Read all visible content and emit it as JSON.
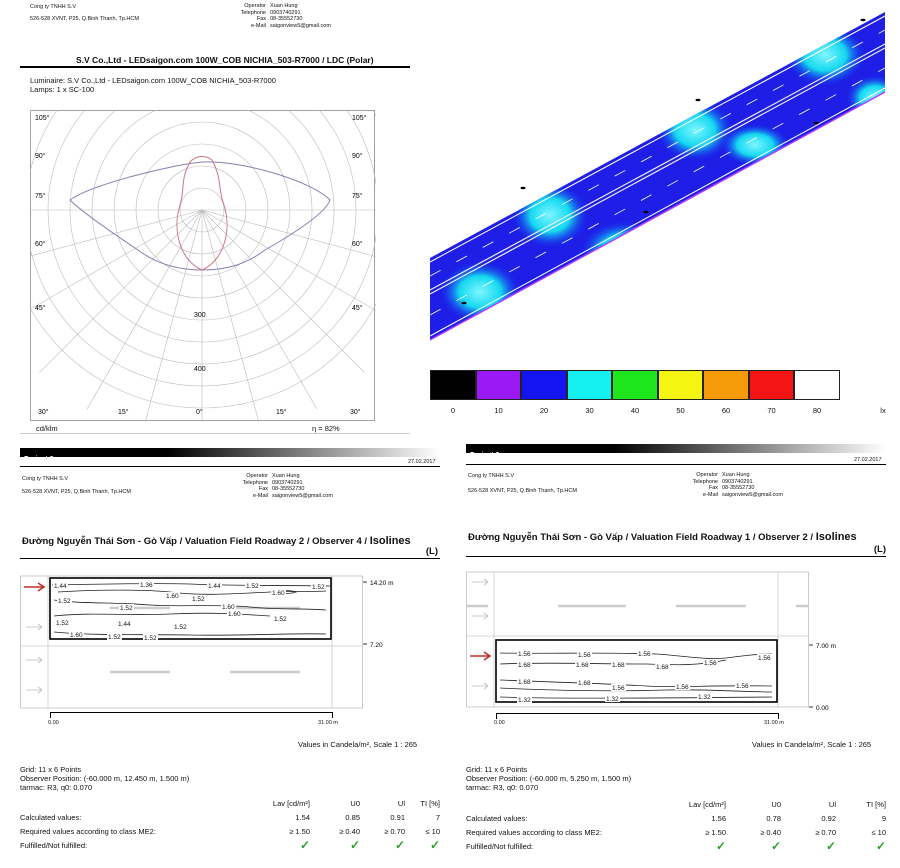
{
  "company": {
    "name": "Cong ty TNHH S.V",
    "address": "526-528 XVNT, P25, Q.Binh Thanh, Tp.HCM",
    "labels": {
      "operator": "Operator",
      "telephone": "Telephone",
      "fax": "Fax",
      "email": "e-Mail"
    },
    "operator": "Xuan Hung",
    "telephone": "0903740291",
    "fax": "08-35552730",
    "email": "saigonview5@gmail.com"
  },
  "ldc": {
    "title": "S.V Co.,Ltd - LEDsaigon.com 100W_COB NICHIA_503-R7000 / LDC (Polar)",
    "luminaire": "Luminaire: S.V Co.,Ltd - LEDsaigon.com 100W_COB NICHIA_503-R7000",
    "lamps": "Lamps: 1 x SC-100",
    "unit": "cd/klm",
    "eta": "η = 82%",
    "angles": {
      "a105": "105°",
      "a90": "90°",
      "a75": "75°",
      "a60": "60°",
      "a45": "45°",
      "a30": "30°",
      "a15": "15°",
      "a0": "0°"
    },
    "radial": {
      "r300": "300",
      "r400": "400"
    }
  },
  "legend": {
    "colors": [
      "#000000",
      "#9b19f5",
      "#1414f0",
      "#14f0f0",
      "#1ee61e",
      "#f5f514",
      "#f59b0a",
      "#f51414",
      "#ffffff"
    ],
    "values": [
      "0",
      "10",
      "20",
      "30",
      "40",
      "50",
      "60",
      "70",
      "80"
    ],
    "unit": "lx"
  },
  "left_panel": {
    "project": "Project 2",
    "date": "27.02.2017",
    "title": "Đường Nguyễn Thái Sơn - Gò Vấp / Valuation Field Roadway 2 / Observer 4 / ",
    "title_suffix": "Isolines",
    "title_l": "(L)",
    "y_top": "14.20 m",
    "y_mid": "7.20",
    "x_start": "0.00",
    "x_end": "31.00 m",
    "scale": "Values in Candela/m², Scale 1 : 265",
    "iso": [
      "1.44",
      "1.36",
      "1.44",
      "1.52",
      "1.52",
      "1.60",
      "1.52",
      "1.60",
      "1.52",
      "1.60",
      "1.52",
      "1.60",
      "1.52",
      "1.52",
      "1.44",
      "1.52",
      "1.60",
      "1.52",
      "1.52"
    ],
    "grid": "Grid: 11 x 6 Points",
    "observer": "Observer Position: (-60.000 m, 12.450 m, 1.500 m)",
    "tarmac": "tarmac: R3, q0: 0.070",
    "headers": [
      "Lav [cd/m²]",
      "U0",
      "Ul",
      "TI [%]"
    ],
    "rows": [
      {
        "label": "Calculated values:",
        "vals": [
          "1.54",
          "0.85",
          "0.91",
          "7"
        ]
      },
      {
        "label": "Required values according to class ME2:",
        "vals": [
          "≥ 1.50",
          "≥ 0.40",
          "≥ 0.70",
          "≤ 10"
        ]
      },
      {
        "label": "Fulfilled/Not fulfilled:",
        "vals": [
          "✓",
          "✓",
          "✓",
          "✓"
        ]
      }
    ]
  },
  "right_panel": {
    "project": "Project 2",
    "date": "27.02.2017",
    "title": "Đường Nguyễn Thái Sơn - Gò Vấp / Valuation Field Roadway 1 / Observer 2 / ",
    "title_suffix": "Isolines",
    "title_l": "(L)",
    "y_top": "7.00 m",
    "y_bottom": "0.00",
    "x_start": "0.00",
    "x_end": "31.00 m",
    "scale": "Values in Candela/m², Scale 1 : 265",
    "iso": [
      "1.56",
      "1.56",
      "1.56",
      "1.56",
      "1.56",
      "1.68",
      "1.68",
      "1.68",
      "1.68",
      "1.68",
      "1.68",
      "1.56",
      "1.56",
      "1.56",
      "1.32",
      "1.32",
      "1.32"
    ],
    "grid": "Grid: 11 x 6 Points",
    "observer": "Observer Position: (-60.000 m, 5.250 m, 1.500 m)",
    "tarmac": "tarmac: R3, q0: 0.070",
    "headers": [
      "Lav [cd/m²]",
      "U0",
      "Ul",
      "TI [%]"
    ],
    "rows": [
      {
        "label": "Calculated values:",
        "vals": [
          "1.56",
          "0.78",
          "0.92",
          "9"
        ]
      },
      {
        "label": "Required values according to class ME2:",
        "vals": [
          "≥ 1.50",
          "≥ 0.40",
          "≥ 0.70",
          "≤ 10"
        ]
      },
      {
        "label": "Fulfilled/Not fulfilled:",
        "vals": [
          "✓",
          "✓",
          "✓",
          "✓"
        ]
      }
    ]
  }
}
